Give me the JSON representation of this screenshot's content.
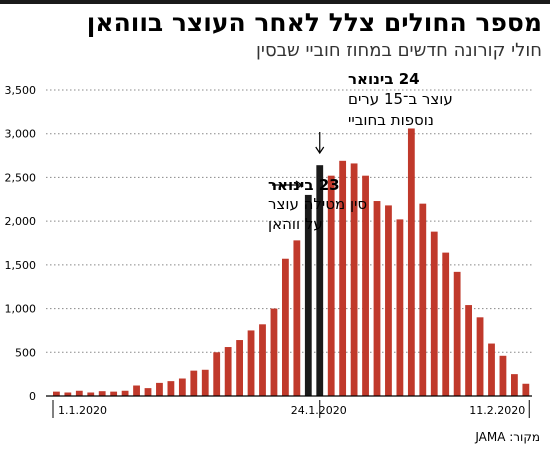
{
  "title": "מספר החולים צלל לאחר העוצר בווהאן",
  "subtitle": "חולי קורונה חדשים במחוז חוביי שבסין",
  "source": "מקור: JAMA",
  "colors": {
    "bar": "#c0392b",
    "highlight": "#1a1a1a",
    "grid": "#888888"
  },
  "chart_data": {
    "type": "bar",
    "title": "מספר החולים צלל לאחר העוצר בווהאן",
    "subtitle": "חולי קורונה חדשים במחוז חוביי שבסין",
    "ylim": [
      0,
      3500
    ],
    "yticks": [
      0,
      500,
      1000,
      1500,
      2000,
      2500,
      3000,
      3500
    ],
    "ytick_labels": [
      "0",
      "500",
      "1,000",
      "1,500",
      "2,000",
      "2,500",
      "3,000",
      "3,500"
    ],
    "grid": true,
    "x_date_labels": [
      "1.1.2020",
      "24.1.2020",
      "11.2.2020"
    ],
    "values": [
      50,
      40,
      60,
      40,
      55,
      50,
      60,
      120,
      90,
      150,
      170,
      200,
      290,
      300,
      500,
      560,
      640,
      750,
      820,
      1000,
      1570,
      1780,
      2300,
      2640,
      2520,
      2690,
      2660,
      2520,
      2230,
      2180,
      2020,
      3060,
      2200,
      1880,
      1640,
      1420,
      1040,
      900,
      600,
      460,
      250,
      140
    ],
    "highlight_indices": [
      22,
      23
    ],
    "annotations": [
      {
        "date": "23 בינואר",
        "text": [
          "סין מטילה עוצר",
          "על ווהאן"
        ]
      },
      {
        "date": "24 בינואר",
        "text": [
          "עוצר ב־15 ערים",
          "נוספות בחוביי"
        ]
      }
    ]
  }
}
